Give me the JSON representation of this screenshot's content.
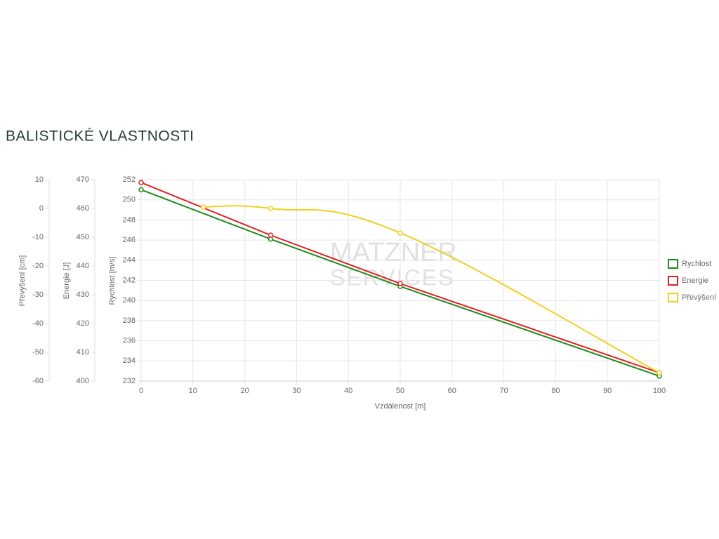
{
  "chart_data": {
    "type": "line",
    "title": "BALISTICKÉ VLASTNOSTI",
    "watermark": [
      "MATZNER",
      "SERVICES"
    ],
    "x_label": "Vzdálenost [m]",
    "y_label": "Rychlost [m/s]",
    "y2_label": "Energie [J]",
    "y3_label": "Převýšení [cm]",
    "x": [
      0,
      25,
      50,
      100
    ],
    "xlim": [
      0,
      100
    ],
    "xticks": [
      0,
      10,
      20,
      30,
      40,
      50,
      60,
      70,
      80,
      90,
      100
    ],
    "ylim": [
      232,
      252
    ],
    "yticks": [
      232,
      234,
      236,
      238,
      240,
      242,
      244,
      246,
      248,
      250,
      252
    ],
    "y2lim": [
      400,
      470
    ],
    "y2ticks": [
      400,
      410,
      420,
      430,
      440,
      450,
      460,
      470
    ],
    "y3lim": [
      -60,
      10
    ],
    "y3ticks": [
      -60,
      -50,
      -40,
      -30,
      -20,
      -10,
      0,
      10
    ],
    "grid": true,
    "legend": "right",
    "series": [
      {
        "name": "Rychlost",
        "color": "#1e8a1e",
        "values": [
          251,
          246.1,
          241.4,
          232.5
        ]
      },
      {
        "name": "Energie",
        "color": "#e02020",
        "axis": "y2",
        "values": [
          469,
          450.7,
          433.9,
          402.9
        ]
      },
      {
        "name": "Převýšení",
        "color": "#f0d020",
        "axis": "y3",
        "smooth": true,
        "x": [
          12,
          25,
          50,
          100
        ],
        "values": [
          0.5,
          0,
          -8.5,
          -57.1
        ]
      }
    ]
  }
}
